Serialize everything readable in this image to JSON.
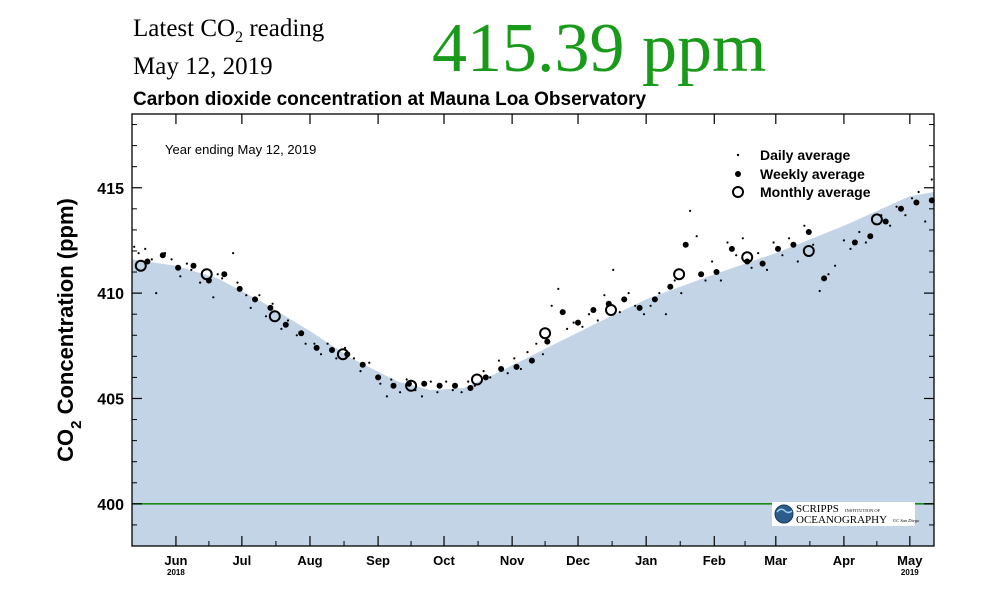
{
  "header": {
    "latest_label_pre": "Latest CO",
    "latest_label_sub": "2",
    "latest_label_post": " reading",
    "date": "May 12, 2019",
    "value": "415.39 ppm",
    "value_color": "#1a9a1a"
  },
  "chart_data": {
    "type": "scatter",
    "title": "Carbon dioxide concentration at Mauna Loa Observatory",
    "annotation": "Year ending May 12, 2019",
    "ylabel": {
      "pre": "CO",
      "sub": "2",
      "post": " Concentration (ppm)"
    },
    "ylim": [
      398,
      418.5
    ],
    "yticks": [
      400,
      405,
      410,
      415
    ],
    "xlim": [
      "2018-05-12",
      "2019-05-12"
    ],
    "xticks": [
      {
        "date": "2018-06-01",
        "label": "Jun",
        "year": "2018"
      },
      {
        "date": "2018-07-01",
        "label": "Jul"
      },
      {
        "date": "2018-08-01",
        "label": "Aug"
      },
      {
        "date": "2018-09-01",
        "label": "Sep"
      },
      {
        "date": "2018-10-01",
        "label": "Oct"
      },
      {
        "date": "2018-11-01",
        "label": "Nov"
      },
      {
        "date": "2018-12-01",
        "label": "Dec"
      },
      {
        "date": "2019-01-01",
        "label": "Jan"
      },
      {
        "date": "2019-02-01",
        "label": "Feb"
      },
      {
        "date": "2019-03-01",
        "label": "Mar"
      },
      {
        "date": "2019-04-01",
        "label": "Apr"
      },
      {
        "date": "2019-05-01",
        "label": "May",
        "year": "2019"
      }
    ],
    "reference_line": {
      "value": 400,
      "color": "#1a8a1a"
    },
    "fill_color": "#c2d4e6",
    "legend": {
      "placement": "top-right",
      "entries": [
        "Daily average",
        "Weekly average",
        "Monthly average"
      ]
    },
    "trend_band": [
      {
        "date": "2018-05-12",
        "value": 411.6
      },
      {
        "date": "2018-06-01",
        "value": 411.3
      },
      {
        "date": "2018-06-20",
        "value": 410.7
      },
      {
        "date": "2018-07-10",
        "value": 409.6
      },
      {
        "date": "2018-08-01",
        "value": 408.2
      },
      {
        "date": "2018-08-20",
        "value": 406.9
      },
      {
        "date": "2018-09-10",
        "value": 405.8
      },
      {
        "date": "2018-09-25",
        "value": 405.4
      },
      {
        "date": "2018-10-10",
        "value": 405.5
      },
      {
        "date": "2018-10-25",
        "value": 406.2
      },
      {
        "date": "2018-11-15",
        "value": 407.3
      },
      {
        "date": "2018-12-10",
        "value": 408.6
      },
      {
        "date": "2019-01-01",
        "value": 409.7
      },
      {
        "date": "2019-02-01",
        "value": 410.9
      },
      {
        "date": "2019-03-01",
        "value": 411.9
      },
      {
        "date": "2019-04-01",
        "value": 413.2
      },
      {
        "date": "2019-05-01",
        "value": 414.6
      },
      {
        "date": "2019-05-12",
        "value": 414.8
      }
    ],
    "series": [
      {
        "name": "Monthly average",
        "points": [
          {
            "date": "2018-05-16",
            "value": 411.3
          },
          {
            "date": "2018-06-15",
            "value": 410.9
          },
          {
            "date": "2018-07-16",
            "value": 408.9
          },
          {
            "date": "2018-08-16",
            "value": 407.1
          },
          {
            "date": "2018-09-16",
            "value": 405.6
          },
          {
            "date": "2018-10-16",
            "value": 405.9
          },
          {
            "date": "2018-11-16",
            "value": 408.1
          },
          {
            "date": "2018-12-16",
            "value": 409.2
          },
          {
            "date": "2019-01-16",
            "value": 410.9
          },
          {
            "date": "2019-02-16",
            "value": 411.7
          },
          {
            "date": "2019-03-16",
            "value": 412.0
          },
          {
            "date": "2019-04-16",
            "value": 413.5
          }
        ]
      },
      {
        "name": "Weekly average",
        "points": [
          {
            "date": "2018-05-19",
            "value": 411.5
          },
          {
            "date": "2018-05-26",
            "value": 411.8
          },
          {
            "date": "2018-06-02",
            "value": 411.2
          },
          {
            "date": "2018-06-09",
            "value": 411.3
          },
          {
            "date": "2018-06-16",
            "value": 410.6
          },
          {
            "date": "2018-06-23",
            "value": 410.9
          },
          {
            "date": "2018-06-30",
            "value": 410.2
          },
          {
            "date": "2018-07-07",
            "value": 409.7
          },
          {
            "date": "2018-07-14",
            "value": 409.3
          },
          {
            "date": "2018-07-21",
            "value": 408.5
          },
          {
            "date": "2018-07-28",
            "value": 408.1
          },
          {
            "date": "2018-08-04",
            "value": 407.4
          },
          {
            "date": "2018-08-11",
            "value": 407.3
          },
          {
            "date": "2018-08-18",
            "value": 407.1
          },
          {
            "date": "2018-08-25",
            "value": 406.6
          },
          {
            "date": "2018-09-01",
            "value": 406.0
          },
          {
            "date": "2018-09-08",
            "value": 405.6
          },
          {
            "date": "2018-09-15",
            "value": 405.7
          },
          {
            "date": "2018-09-22",
            "value": 405.7
          },
          {
            "date": "2018-09-29",
            "value": 405.6
          },
          {
            "date": "2018-10-06",
            "value": 405.6
          },
          {
            "date": "2018-10-13",
            "value": 405.5
          },
          {
            "date": "2018-10-20",
            "value": 406.0
          },
          {
            "date": "2018-10-27",
            "value": 406.4
          },
          {
            "date": "2018-11-03",
            "value": 406.5
          },
          {
            "date": "2018-11-10",
            "value": 406.8
          },
          {
            "date": "2018-11-17",
            "value": 407.7
          },
          {
            "date": "2018-11-24",
            "value": 409.1
          },
          {
            "date": "2018-12-01",
            "value": 408.6
          },
          {
            "date": "2018-12-08",
            "value": 409.2
          },
          {
            "date": "2018-12-15",
            "value": 409.5
          },
          {
            "date": "2018-12-22",
            "value": 409.7
          },
          {
            "date": "2018-12-29",
            "value": 409.3
          },
          {
            "date": "2019-01-05",
            "value": 409.7
          },
          {
            "date": "2019-01-12",
            "value": 410.3
          },
          {
            "date": "2019-01-19",
            "value": 412.3
          },
          {
            "date": "2019-01-26",
            "value": 410.9
          },
          {
            "date": "2019-02-02",
            "value": 411.0
          },
          {
            "date": "2019-02-09",
            "value": 412.1
          },
          {
            "date": "2019-02-16",
            "value": 411.5
          },
          {
            "date": "2019-02-23",
            "value": 411.4
          },
          {
            "date": "2019-03-02",
            "value": 412.1
          },
          {
            "date": "2019-03-09",
            "value": 412.3
          },
          {
            "date": "2019-03-16",
            "value": 412.9
          },
          {
            "date": "2019-03-23",
            "value": 410.7
          },
          {
            "date": "2019-04-06",
            "value": 412.4
          },
          {
            "date": "2019-04-13",
            "value": 412.7
          },
          {
            "date": "2019-04-20",
            "value": 413.4
          },
          {
            "date": "2019-04-27",
            "value": 414.0
          },
          {
            "date": "2019-05-04",
            "value": 414.3
          },
          {
            "date": "2019-05-11",
            "value": 414.4
          }
        ]
      },
      {
        "name": "Daily average",
        "points": [
          {
            "date": "2018-05-13",
            "value": 412.2
          },
          {
            "date": "2018-05-15",
            "value": 411.9
          },
          {
            "date": "2018-05-18",
            "value": 412.1
          },
          {
            "date": "2018-05-21",
            "value": 411.6
          },
          {
            "date": "2018-05-23",
            "value": 410.0
          },
          {
            "date": "2018-05-27",
            "value": 411.9
          },
          {
            "date": "2018-05-30",
            "value": 411.6
          },
          {
            "date": "2018-06-03",
            "value": 410.8
          },
          {
            "date": "2018-06-06",
            "value": 411.4
          },
          {
            "date": "2018-06-08",
            "value": 411.1
          },
          {
            "date": "2018-06-12",
            "value": 410.5
          },
          {
            "date": "2018-06-14",
            "value": 411.1
          },
          {
            "date": "2018-06-18",
            "value": 409.8
          },
          {
            "date": "2018-06-20",
            "value": 410.9
          },
          {
            "date": "2018-06-22",
            "value": 410.7
          },
          {
            "date": "2018-06-27",
            "value": 411.9
          },
          {
            "date": "2018-06-29",
            "value": 410.5
          },
          {
            "date": "2018-07-03",
            "value": 409.9
          },
          {
            "date": "2018-07-05",
            "value": 409.3
          },
          {
            "date": "2018-07-09",
            "value": 409.9
          },
          {
            "date": "2018-07-12",
            "value": 408.9
          },
          {
            "date": "2018-07-15",
            "value": 409.5
          },
          {
            "date": "2018-07-19",
            "value": 408.3
          },
          {
            "date": "2018-07-22",
            "value": 408.7
          },
          {
            "date": "2018-07-26",
            "value": 408.0
          },
          {
            "date": "2018-07-30",
            "value": 407.6
          },
          {
            "date": "2018-08-03",
            "value": 407.6
          },
          {
            "date": "2018-08-06",
            "value": 407.1
          },
          {
            "date": "2018-08-09",
            "value": 407.6
          },
          {
            "date": "2018-08-13",
            "value": 406.9
          },
          {
            "date": "2018-08-17",
            "value": 407.4
          },
          {
            "date": "2018-08-21",
            "value": 406.9
          },
          {
            "date": "2018-08-24",
            "value": 406.3
          },
          {
            "date": "2018-08-28",
            "value": 406.7
          },
          {
            "date": "2018-09-02",
            "value": 405.7
          },
          {
            "date": "2018-09-05",
            "value": 405.1
          },
          {
            "date": "2018-09-07",
            "value": 405.9
          },
          {
            "date": "2018-09-11",
            "value": 405.3
          },
          {
            "date": "2018-09-14",
            "value": 405.9
          },
          {
            "date": "2018-09-18",
            "value": 405.4
          },
          {
            "date": "2018-09-21",
            "value": 405.1
          },
          {
            "date": "2018-09-25",
            "value": 405.8
          },
          {
            "date": "2018-09-28",
            "value": 405.3
          },
          {
            "date": "2018-10-02",
            "value": 405.8
          },
          {
            "date": "2018-10-05",
            "value": 405.4
          },
          {
            "date": "2018-10-09",
            "value": 405.3
          },
          {
            "date": "2018-10-12",
            "value": 405.8
          },
          {
            "date": "2018-10-15",
            "value": 405.6
          },
          {
            "date": "2018-10-19",
            "value": 406.3
          },
          {
            "date": "2018-10-22",
            "value": 406.0
          },
          {
            "date": "2018-10-26",
            "value": 406.8
          },
          {
            "date": "2018-10-30",
            "value": 406.2
          },
          {
            "date": "2018-11-02",
            "value": 406.9
          },
          {
            "date": "2018-11-05",
            "value": 406.4
          },
          {
            "date": "2018-11-08",
            "value": 407.2
          },
          {
            "date": "2018-11-12",
            "value": 407.6
          },
          {
            "date": "2018-11-15",
            "value": 407.1
          },
          {
            "date": "2018-11-19",
            "value": 409.4
          },
          {
            "date": "2018-11-22",
            "value": 410.2
          },
          {
            "date": "2018-11-26",
            "value": 408.3
          },
          {
            "date": "2018-11-29",
            "value": 408.6
          },
          {
            "date": "2018-12-03",
            "value": 408.4
          },
          {
            "date": "2018-12-06",
            "value": 409.0
          },
          {
            "date": "2018-12-10",
            "value": 408.7
          },
          {
            "date": "2018-12-13",
            "value": 409.9
          },
          {
            "date": "2018-12-17",
            "value": 411.1
          },
          {
            "date": "2018-12-20",
            "value": 409.1
          },
          {
            "date": "2018-12-24",
            "value": 410.0
          },
          {
            "date": "2018-12-27",
            "value": 409.4
          },
          {
            "date": "2018-12-31",
            "value": 409.0
          },
          {
            "date": "2019-01-03",
            "value": 409.4
          },
          {
            "date": "2019-01-07",
            "value": 410.0
          },
          {
            "date": "2019-01-10",
            "value": 409.0
          },
          {
            "date": "2019-01-14",
            "value": 410.6
          },
          {
            "date": "2019-01-17",
            "value": 410.0
          },
          {
            "date": "2019-01-21",
            "value": 413.9
          },
          {
            "date": "2019-01-24",
            "value": 412.7
          },
          {
            "date": "2019-01-28",
            "value": 410.6
          },
          {
            "date": "2019-01-31",
            "value": 411.5
          },
          {
            "date": "2019-02-04",
            "value": 410.6
          },
          {
            "date": "2019-02-07",
            "value": 412.4
          },
          {
            "date": "2019-02-11",
            "value": 411.8
          },
          {
            "date": "2019-02-14",
            "value": 412.6
          },
          {
            "date": "2019-02-18",
            "value": 411.2
          },
          {
            "date": "2019-02-21",
            "value": 411.9
          },
          {
            "date": "2019-02-25",
            "value": 411.1
          },
          {
            "date": "2019-02-28",
            "value": 412.4
          },
          {
            "date": "2019-03-04",
            "value": 411.8
          },
          {
            "date": "2019-03-07",
            "value": 412.6
          },
          {
            "date": "2019-03-11",
            "value": 411.5
          },
          {
            "date": "2019-03-14",
            "value": 413.2
          },
          {
            "date": "2019-03-18",
            "value": 412.3
          },
          {
            "date": "2019-03-21",
            "value": 410.1
          },
          {
            "date": "2019-03-25",
            "value": 410.9
          },
          {
            "date": "2019-03-28",
            "value": 411.3
          },
          {
            "date": "2019-04-01",
            "value": 412.5
          },
          {
            "date": "2019-04-04",
            "value": 412.1
          },
          {
            "date": "2019-04-08",
            "value": 412.9
          },
          {
            "date": "2019-04-11",
            "value": 412.4
          },
          {
            "date": "2019-04-15",
            "value": 413.3
          },
          {
            "date": "2019-04-18",
            "value": 413.7
          },
          {
            "date": "2019-04-22",
            "value": 413.2
          },
          {
            "date": "2019-04-25",
            "value": 414.1
          },
          {
            "date": "2019-04-29",
            "value": 413.7
          },
          {
            "date": "2019-05-02",
            "value": 414.5
          },
          {
            "date": "2019-05-05",
            "value": 414.8
          },
          {
            "date": "2019-05-08",
            "value": 413.4
          },
          {
            "date": "2019-05-11",
            "value": 415.39
          }
        ]
      }
    ],
    "logo": {
      "line1": "SCRIPPS",
      "line1b": "INSTITUTION OF",
      "line2": "OCEANOGRAPHY",
      "line2b": "UC San Diego"
    }
  }
}
